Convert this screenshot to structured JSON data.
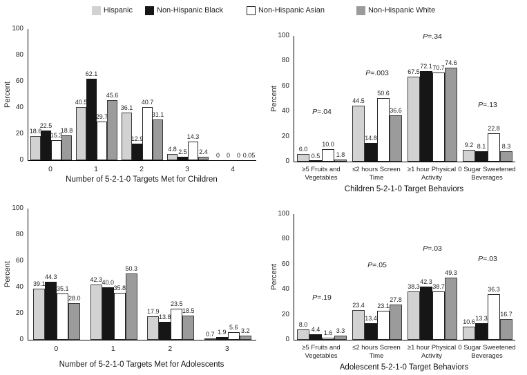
{
  "figure": {
    "background": "#ffffff",
    "axis_color": "#000000"
  },
  "legend": {
    "position": "top-center",
    "items": [
      {
        "label": "Hispanic",
        "fill": "#d2d2d2",
        "bar_border": "#3a3a3a",
        "swatch_border": ""
      },
      {
        "label": "Non-Hispanic Black",
        "fill": "#161616",
        "bar_border": "#161616",
        "swatch_border": ""
      },
      {
        "label": "Non-Hispanic Asian",
        "fill": "#ffffff",
        "bar_border": "#222222",
        "swatch_border": "#222222"
      },
      {
        "label": "Non-Hispanic White",
        "fill": "#9b9b9b",
        "bar_border": "#3a3a3a",
        "swatch_border": ""
      }
    ]
  },
  "chart_data": [
    {
      "id": "targets-children",
      "type": "bar",
      "title": "",
      "xlabel": "Number of 5-2-1-0 Targets Met for Children",
      "ylabel": "Percent",
      "ylim": [
        0,
        100
      ],
      "yticks": [
        0,
        20,
        40,
        60,
        80,
        100
      ],
      "grid": false,
      "categories": [
        [
          "0"
        ],
        [
          "1"
        ],
        [
          "2"
        ],
        [
          "3"
        ],
        [
          "4"
        ]
      ],
      "series": [
        {
          "name": "Hispanic",
          "values": [
            18.6,
            40.5,
            36.1,
            4.8,
            0
          ],
          "labels": [
            "18.6",
            "40.5",
            "36.1",
            "4.8",
            "0"
          ]
        },
        {
          "name": "Non-Hispanic Black",
          "values": [
            22.5,
            62.1,
            12.9,
            2.5,
            0
          ],
          "labels": [
            "22.5",
            "62.1",
            "12.9",
            "2.5",
            "0"
          ]
        },
        {
          "name": "Non-Hispanic Asian",
          "values": [
            15.3,
            29.7,
            40.7,
            14.3,
            0
          ],
          "labels": [
            "15.3",
            "29.7",
            "40.7",
            "14.3",
            "0"
          ]
        },
        {
          "name": "Non-Hispanic White",
          "values": [
            18.8,
            45.6,
            31.1,
            2.4,
            0.05
          ],
          "labels": [
            "18.8",
            "45.6",
            "31.1",
            "2.4",
            "0.05"
          ]
        }
      ],
      "annotations": []
    },
    {
      "id": "behaviors-children",
      "type": "bar",
      "title": "",
      "xlabel": "Children 5-2-1-0 Target Behaviors",
      "ylabel": "Percent",
      "ylim": [
        0,
        100
      ],
      "yticks": [
        0,
        20,
        40,
        60,
        80,
        100
      ],
      "grid": false,
      "categories": [
        [
          "≥5 Fruits and",
          "Vegetables"
        ],
        [
          "≤2 hours Screen",
          "Time"
        ],
        [
          "≥1 hour Physical",
          "Activity"
        ],
        [
          "0 Sugar Sweetened",
          "Beverages"
        ]
      ],
      "series": [
        {
          "name": "Hispanic",
          "values": [
            6.0,
            44.5,
            67.5,
            9.2
          ],
          "labels": [
            "6.0",
            "44.5",
            "67.5",
            "9.2"
          ]
        },
        {
          "name": "Non-Hispanic Black",
          "values": [
            0.5,
            14.8,
            72.1,
            8.1
          ],
          "labels": [
            "0.5",
            "14.8",
            "72.1",
            "8.1"
          ]
        },
        {
          "name": "Non-Hispanic Asian",
          "values": [
            10.0,
            50.6,
            70.7,
            22.8
          ],
          "labels": [
            "10.0",
            "50.6",
            "70.7",
            "22.8"
          ]
        },
        {
          "name": "Non-Hispanic White",
          "values": [
            1.8,
            36.6,
            74.6,
            8.3
          ],
          "labels": [
            "1.8",
            "36.6",
            "74.6",
            "8.3"
          ]
        }
      ],
      "annotations": [
        {
          "label": "P",
          "value": "=.04",
          "group": 0,
          "y": 36
        },
        {
          "label": "P",
          "value": "=.003",
          "group": 1,
          "y": 67
        },
        {
          "label": "P",
          "value": "=.34",
          "group": 2,
          "y": 96
        },
        {
          "label": "P",
          "value": "=.13",
          "group": 3,
          "y": 42
        }
      ]
    },
    {
      "id": "targets-adolescents",
      "type": "bar",
      "title": "",
      "xlabel": "Number of 5-2-1-0 Targets Met for Adolescents",
      "ylabel": "Percent",
      "ylim": [
        0,
        100
      ],
      "yticks": [
        0,
        20,
        40,
        60,
        80,
        100
      ],
      "grid": false,
      "categories": [
        [
          "0"
        ],
        [
          "1"
        ],
        [
          "2"
        ],
        [
          "3"
        ]
      ],
      "series": [
        {
          "name": "Hispanic",
          "values": [
            39.1,
            42.3,
            17.9,
            0.7
          ],
          "labels": [
            "39.1",
            "42.3",
            "17.9",
            "0.7"
          ]
        },
        {
          "name": "Non-Hispanic Black",
          "values": [
            44.3,
            40.0,
            13.8,
            1.9
          ],
          "labels": [
            "44.3",
            "40.0",
            "13.8",
            "1.9"
          ]
        },
        {
          "name": "Non-Hispanic Asian",
          "values": [
            35.1,
            35.8,
            23.5,
            5.6
          ],
          "labels": [
            "35.1",
            "35.8",
            "23.5",
            "5.6"
          ]
        },
        {
          "name": "Non-Hispanic White",
          "values": [
            28.0,
            50.3,
            18.5,
            3.2
          ],
          "labels": [
            "28.0",
            "50.3",
            "18.5",
            "3.2"
          ]
        }
      ],
      "annotations": []
    },
    {
      "id": "behaviors-adolescents",
      "type": "bar",
      "title": "",
      "xlabel": "Adolescent 5-2-1-0 Target Behaviors",
      "ylabel": "Percent",
      "ylim": [
        0,
        100
      ],
      "yticks": [
        0,
        20,
        40,
        60,
        80,
        100
      ],
      "grid": false,
      "categories": [
        [
          "≥5 Fruits and",
          "Vegetables"
        ],
        [
          "≤2 hours Screen",
          "Time"
        ],
        [
          "≥1 hour Physical",
          "Activity"
        ],
        [
          "0 Sugar Sweetened",
          "Beverages"
        ]
      ],
      "series": [
        {
          "name": "Hispanic",
          "values": [
            8.0,
            23.4,
            38.3,
            10.6
          ],
          "labels": [
            "8.0",
            "23.4",
            "38.3",
            "10.6"
          ]
        },
        {
          "name": "Non-Hispanic Black",
          "values": [
            4.4,
            13.4,
            42.3,
            13.3
          ],
          "labels": [
            "4.4",
            "13.4",
            "42.3",
            "13.3"
          ]
        },
        {
          "name": "Non-Hispanic Asian",
          "values": [
            1.6,
            23.1,
            38.7,
            36.3
          ],
          "labels": [
            "1.6",
            "23.1",
            "38.7",
            "36.3"
          ]
        },
        {
          "name": "Non-Hispanic White",
          "values": [
            3.3,
            27.8,
            49.3,
            16.7
          ],
          "labels": [
            "3.3",
            "27.8",
            "49.3",
            "16.7"
          ]
        }
      ],
      "annotations": [
        {
          "label": "P",
          "value": "=.19",
          "group": 0,
          "y": 30
        },
        {
          "label": "P",
          "value": "=.05",
          "group": 1,
          "y": 56
        },
        {
          "label": "P",
          "value": "=.03",
          "group": 2,
          "y": 69
        },
        {
          "label": "P",
          "value": "=.03",
          "group": 3,
          "y": 61
        }
      ]
    }
  ]
}
